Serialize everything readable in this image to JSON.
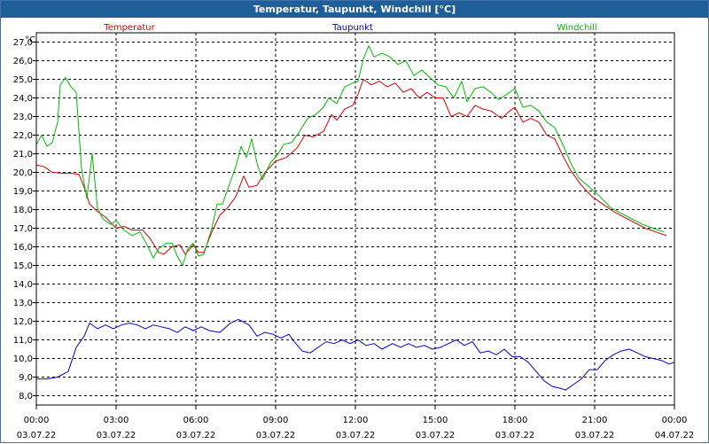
{
  "window": {
    "title": "Temperatur, Taupunkt, Windchill [°C]"
  },
  "chart_data": {
    "type": "line",
    "title": "Temperatur, Taupunkt, Windchill [°C]",
    "ylabel": "°C",
    "ylim": [
      7.5,
      27.5
    ],
    "y_ticks": [
      "27,0",
      "26,0",
      "25,0",
      "24,0",
      "23,0",
      "22,0",
      "21,0",
      "20,0",
      "19,0",
      "18,0",
      "17,0",
      "16,0",
      "15,0",
      "14,0",
      "13,0",
      "12,0",
      "11,0",
      "10,0",
      "9,0",
      "8,0"
    ],
    "xlim": [
      0,
      24
    ],
    "x_ticks": [
      {
        "time": "00:00",
        "date": "03.07.22",
        "hour": 0
      },
      {
        "time": "03:00",
        "date": "03.07.22",
        "hour": 3
      },
      {
        "time": "06:00",
        "date": "03.07.22",
        "hour": 6
      },
      {
        "time": "09:00",
        "date": "03.07.22",
        "hour": 9
      },
      {
        "time": "12:00",
        "date": "03.07.22",
        "hour": 12
      },
      {
        "time": "15:00",
        "date": "03.07.22",
        "hour": 15
      },
      {
        "time": "18:00",
        "date": "03.07.22",
        "hour": 18
      },
      {
        "time": "21:00",
        "date": "03.07.22",
        "hour": 21
      },
      {
        "time": "00:00",
        "date": "04.07.22",
        "hour": 24
      }
    ],
    "grid": true,
    "legend_position": "top",
    "series": [
      {
        "name": "Temperatur",
        "color": "#cc0000",
        "points": [
          [
            0,
            20.4
          ],
          [
            0.3,
            20.3
          ],
          [
            0.6,
            20.0
          ],
          [
            1.0,
            19.95
          ],
          [
            1.3,
            19.95
          ],
          [
            1.6,
            19.9
          ],
          [
            1.8,
            19.2
          ],
          [
            2.0,
            18.3
          ],
          [
            2.3,
            17.9
          ],
          [
            2.6,
            17.6
          ],
          [
            2.8,
            17.3
          ],
          [
            3.0,
            17.0
          ],
          [
            3.3,
            17.1
          ],
          [
            3.6,
            16.9
          ],
          [
            4.0,
            16.9
          ],
          [
            4.3,
            16.4
          ],
          [
            4.6,
            15.7
          ],
          [
            4.8,
            15.6
          ],
          [
            5.1,
            16.0
          ],
          [
            5.4,
            16.1
          ],
          [
            5.6,
            15.6
          ],
          [
            5.9,
            16.1
          ],
          [
            6.1,
            15.7
          ],
          [
            6.3,
            15.7
          ],
          [
            6.6,
            16.8
          ],
          [
            6.9,
            17.7
          ],
          [
            7.2,
            18.1
          ],
          [
            7.5,
            18.7
          ],
          [
            7.8,
            19.8
          ],
          [
            8.0,
            19.2
          ],
          [
            8.3,
            19.3
          ],
          [
            8.6,
            20.0
          ],
          [
            9.0,
            20.6
          ],
          [
            9.4,
            20.8
          ],
          [
            9.8,
            21.3
          ],
          [
            10.1,
            22.0
          ],
          [
            10.4,
            21.9
          ],
          [
            10.8,
            22.2
          ],
          [
            11.1,
            23.1
          ],
          [
            11.3,
            22.8
          ],
          [
            11.6,
            23.4
          ],
          [
            11.9,
            23.6
          ],
          [
            12.1,
            24.2
          ],
          [
            12.3,
            25.0
          ],
          [
            12.6,
            24.7
          ],
          [
            12.9,
            24.9
          ],
          [
            13.2,
            24.6
          ],
          [
            13.5,
            24.8
          ],
          [
            13.8,
            24.3
          ],
          [
            14.1,
            24.5
          ],
          [
            14.4,
            24.0
          ],
          [
            14.7,
            24.3
          ],
          [
            15.0,
            24.0
          ],
          [
            15.3,
            24.0
          ],
          [
            15.6,
            23.0
          ],
          [
            15.9,
            23.2
          ],
          [
            16.2,
            23.0
          ],
          [
            16.5,
            23.6
          ],
          [
            16.8,
            23.4
          ],
          [
            17.1,
            23.3
          ],
          [
            17.5,
            22.9
          ],
          [
            17.8,
            23.3
          ],
          [
            18.0,
            23.5
          ],
          [
            18.3,
            22.7
          ],
          [
            18.6,
            22.9
          ],
          [
            18.9,
            22.7
          ],
          [
            19.2,
            22.0
          ],
          [
            19.5,
            21.8
          ],
          [
            19.8,
            20.9
          ],
          [
            20.1,
            20.1
          ],
          [
            20.5,
            19.3
          ],
          [
            20.9,
            18.7
          ],
          [
            21.3,
            18.3
          ],
          [
            21.7,
            17.9
          ],
          [
            22.1,
            17.6
          ],
          [
            22.5,
            17.3
          ],
          [
            22.9,
            17.0
          ],
          [
            23.3,
            16.8
          ],
          [
            23.7,
            16.6
          ]
        ]
      },
      {
        "name": "Taupunkt",
        "color": "#0000cc",
        "points": [
          [
            0,
            8.9
          ],
          [
            0.4,
            8.9
          ],
          [
            0.8,
            9.0
          ],
          [
            1.2,
            9.3
          ],
          [
            1.5,
            10.6
          ],
          [
            1.8,
            11.2
          ],
          [
            2.0,
            11.9
          ],
          [
            2.3,
            11.6
          ],
          [
            2.6,
            11.8
          ],
          [
            2.9,
            11.6
          ],
          [
            3.2,
            11.8
          ],
          [
            3.5,
            11.9
          ],
          [
            3.8,
            11.8
          ],
          [
            4.1,
            11.6
          ],
          [
            4.4,
            11.8
          ],
          [
            4.7,
            11.7
          ],
          [
            5.0,
            11.6
          ],
          [
            5.3,
            11.4
          ],
          [
            5.6,
            11.7
          ],
          [
            5.9,
            11.5
          ],
          [
            6.2,
            11.7
          ],
          [
            6.5,
            11.5
          ],
          [
            6.9,
            11.4
          ],
          [
            7.3,
            11.9
          ],
          [
            7.6,
            12.1
          ],
          [
            8.0,
            11.8
          ],
          [
            8.3,
            11.2
          ],
          [
            8.6,
            11.4
          ],
          [
            8.9,
            11.3
          ],
          [
            9.2,
            11.1
          ],
          [
            9.5,
            11.3
          ],
          [
            9.7,
            10.9
          ],
          [
            10.0,
            10.4
          ],
          [
            10.3,
            10.3
          ],
          [
            10.6,
            10.6
          ],
          [
            10.9,
            10.9
          ],
          [
            11.2,
            10.8
          ],
          [
            11.5,
            11.0
          ],
          [
            11.8,
            10.8
          ],
          [
            12.1,
            11.0
          ],
          [
            12.4,
            10.7
          ],
          [
            12.7,
            10.8
          ],
          [
            13.0,
            10.5
          ],
          [
            13.4,
            10.8
          ],
          [
            13.7,
            10.6
          ],
          [
            14.0,
            10.8
          ],
          [
            14.3,
            10.6
          ],
          [
            14.6,
            10.7
          ],
          [
            14.9,
            10.5
          ],
          [
            15.2,
            10.6
          ],
          [
            15.5,
            10.8
          ],
          [
            15.8,
            11.0
          ],
          [
            16.1,
            10.7
          ],
          [
            16.4,
            10.9
          ],
          [
            16.7,
            10.3
          ],
          [
            17.0,
            10.4
          ],
          [
            17.3,
            10.2
          ],
          [
            17.6,
            10.5
          ],
          [
            17.9,
            10.1
          ],
          [
            18.2,
            10.1
          ],
          [
            18.5,
            9.8
          ],
          [
            18.8,
            9.3
          ],
          [
            19.1,
            8.8
          ],
          [
            19.4,
            8.5
          ],
          [
            19.7,
            8.4
          ],
          [
            19.9,
            8.3
          ],
          [
            20.2,
            8.6
          ],
          [
            20.5,
            8.9
          ],
          [
            20.8,
            9.4
          ],
          [
            21.1,
            9.4
          ],
          [
            21.4,
            9.9
          ],
          [
            21.7,
            10.2
          ],
          [
            22.0,
            10.4
          ],
          [
            22.3,
            10.5
          ],
          [
            22.6,
            10.3
          ],
          [
            22.9,
            10.1
          ],
          [
            23.2,
            10.0
          ],
          [
            23.5,
            9.9
          ],
          [
            23.8,
            9.7
          ],
          [
            24.0,
            9.8
          ]
        ]
      },
      {
        "name": "Windchill",
        "color": "#00bb00",
        "points": [
          [
            0,
            21.5
          ],
          [
            0.2,
            22.0
          ],
          [
            0.4,
            21.4
          ],
          [
            0.6,
            21.6
          ],
          [
            0.8,
            22.7
          ],
          [
            0.9,
            24.7
          ],
          [
            1.1,
            25.1
          ],
          [
            1.3,
            24.6
          ],
          [
            1.5,
            24.3
          ],
          [
            1.7,
            20.2
          ],
          [
            1.9,
            18.6
          ],
          [
            2.1,
            21.0
          ],
          [
            2.3,
            18.1
          ],
          [
            2.5,
            17.5
          ],
          [
            2.8,
            17.2
          ],
          [
            3.0,
            17.4
          ],
          [
            3.3,
            16.9
          ],
          [
            3.6,
            16.6
          ],
          [
            3.9,
            16.8
          ],
          [
            4.2,
            16.0
          ],
          [
            4.4,
            15.4
          ],
          [
            4.6,
            15.9
          ],
          [
            4.9,
            16.2
          ],
          [
            5.1,
            16.2
          ],
          [
            5.3,
            15.5
          ],
          [
            5.5,
            15.0
          ],
          [
            5.7,
            15.9
          ],
          [
            5.9,
            16.2
          ],
          [
            6.1,
            15.5
          ],
          [
            6.3,
            15.6
          ],
          [
            6.6,
            17.0
          ],
          [
            6.8,
            18.3
          ],
          [
            7.0,
            18.3
          ],
          [
            7.3,
            19.5
          ],
          [
            7.5,
            20.3
          ],
          [
            7.7,
            21.4
          ],
          [
            7.9,
            20.8
          ],
          [
            8.1,
            21.8
          ],
          [
            8.3,
            20.5
          ],
          [
            8.5,
            19.6
          ],
          [
            8.8,
            20.5
          ],
          [
            9.1,
            21.0
          ],
          [
            9.3,
            21.5
          ],
          [
            9.6,
            21.6
          ],
          [
            9.9,
            22.2
          ],
          [
            10.2,
            22.9
          ],
          [
            10.5,
            23.1
          ],
          [
            10.8,
            23.5
          ],
          [
            11.0,
            24.0
          ],
          [
            11.3,
            23.7
          ],
          [
            11.6,
            24.6
          ],
          [
            11.9,
            24.8
          ],
          [
            12.1,
            24.9
          ],
          [
            12.3,
            26.1
          ],
          [
            12.5,
            26.8
          ],
          [
            12.7,
            26.2
          ],
          [
            13.0,
            26.4
          ],
          [
            13.3,
            26.2
          ],
          [
            13.6,
            25.8
          ],
          [
            13.9,
            26.0
          ],
          [
            14.2,
            25.2
          ],
          [
            14.5,
            25.5
          ],
          [
            14.8,
            25.1
          ],
          [
            15.1,
            24.7
          ],
          [
            15.4,
            24.6
          ],
          [
            15.7,
            24.0
          ],
          [
            16.0,
            24.9
          ],
          [
            16.2,
            23.8
          ],
          [
            16.5,
            24.5
          ],
          [
            16.8,
            24.6
          ],
          [
            17.1,
            24.3
          ],
          [
            17.4,
            23.9
          ],
          [
            17.7,
            24.2
          ],
          [
            18.0,
            24.5
          ],
          [
            18.3,
            23.5
          ],
          [
            18.6,
            23.6
          ],
          [
            18.9,
            23.3
          ],
          [
            19.2,
            22.7
          ],
          [
            19.5,
            22.4
          ],
          [
            19.8,
            21.5
          ],
          [
            20.1,
            20.5
          ],
          [
            20.4,
            19.7
          ],
          [
            20.8,
            19.2
          ],
          [
            21.2,
            18.7
          ],
          [
            21.6,
            18.1
          ],
          [
            22.0,
            17.8
          ],
          [
            22.4,
            17.5
          ],
          [
            22.8,
            17.2
          ],
          [
            23.2,
            17.0
          ],
          [
            23.6,
            16.8
          ]
        ]
      }
    ]
  }
}
